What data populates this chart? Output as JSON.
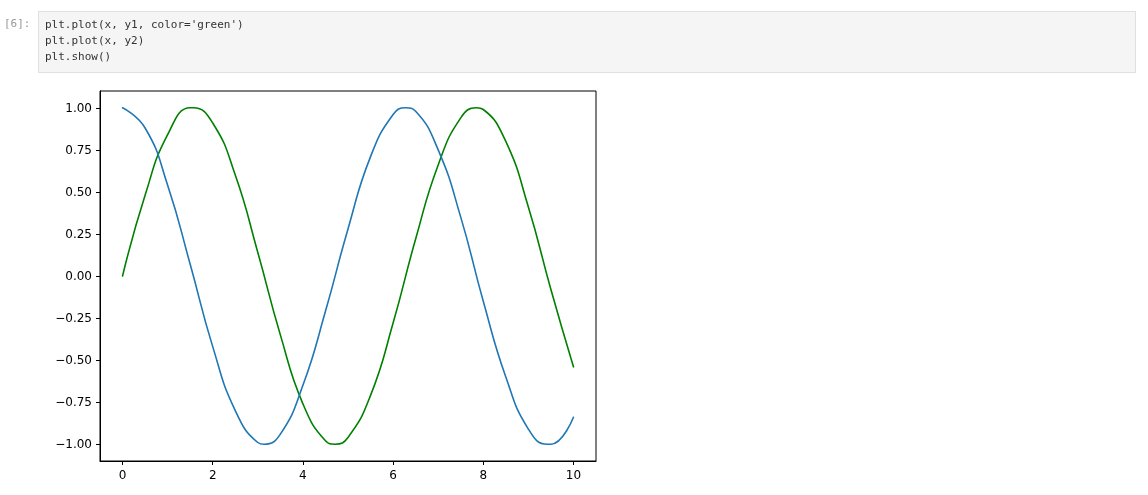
{
  "chart_data": {
    "type": "line",
    "annotations": [
      "[6]:",
      "plt.plot(x, y1, color='green')\nplt.plot(x, y2)\nplt.show()"
    ],
    "series": [
      {
        "color": "#008000",
        "x": [
          0,
          0.5,
          1,
          1.5,
          1.57,
          2,
          2.5,
          3,
          3.5,
          4,
          4.5,
          4.71,
          5,
          5.5,
          6,
          6.5,
          7,
          7.5,
          7.85,
          8,
          8.5,
          9,
          9.5,
          10
        ],
        "values": [
          0,
          0.48,
          0.84,
          1.0,
          1.0,
          0.91,
          0.6,
          0.14,
          -0.35,
          -0.76,
          -0.98,
          -1.0,
          -0.96,
          -0.71,
          -0.28,
          0.22,
          0.66,
          0.94,
          1.0,
          0.99,
          0.8,
          0.41,
          -0.08,
          -0.54
        ]
      },
      {
        "color": "#1f77b4",
        "x": [
          0,
          0.5,
          1,
          1.5,
          2,
          2.5,
          3,
          3.14,
          3.5,
          4,
          4.5,
          5,
          5.5,
          6,
          6.28,
          6.5,
          7,
          7.5,
          8,
          8.5,
          9,
          9.42,
          9.5,
          10
        ],
        "values": [
          1.0,
          0.88,
          0.54,
          0.07,
          -0.42,
          -0.8,
          -0.99,
          -1.0,
          -0.94,
          -0.65,
          -0.21,
          0.28,
          0.71,
          0.96,
          1.0,
          0.98,
          0.75,
          0.35,
          -0.15,
          -0.6,
          -0.91,
          -1.0,
          -1.0,
          -0.84
        ]
      }
    ],
    "xlim": [
      -0.5,
      10.5
    ],
    "xticks": [
      0,
      2,
      4,
      6,
      8,
      10
    ],
    "ylim": [
      -1.1,
      1.1
    ],
    "yticks": [
      {
        "value": -1,
        "label": "−1.00"
      },
      {
        "value": -0.75,
        "label": "−0.75"
      },
      {
        "value": -0.5,
        "label": "−0.50"
      },
      {
        "value": -0.25,
        "label": "−0.25"
      },
      {
        "value": 0,
        "label": "0.00"
      },
      {
        "value": 0.25,
        "label": "0.25"
      },
      {
        "value": 0.5,
        "label": "0.50"
      },
      {
        "value": 0.75,
        "label": "0.75"
      },
      {
        "value": 1,
        "label": "1.00"
      }
    ],
    "grid": false,
    "marker": "none",
    "line_style": "solid"
  }
}
